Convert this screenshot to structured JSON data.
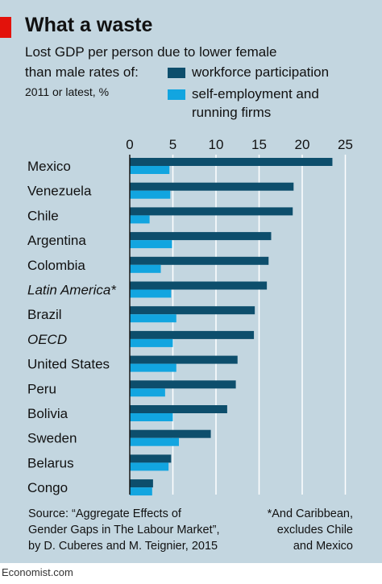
{
  "header": {
    "title": "What a waste",
    "subtitle_line1": "Lost GDP per person due to lower female",
    "subtitle_line2": "than male rates of:",
    "unit_note": "2011 or latest, %"
  },
  "legend": {
    "series1_label": "workforce participation",
    "series2_label_line1": "self-employment and",
    "series2_label_line2": "running firms"
  },
  "colors": {
    "series1": "#0d4e6c",
    "series2": "#12a5e0",
    "background": "#c3d6e0",
    "accent": "#e3120b"
  },
  "chart_data": {
    "type": "bar",
    "orientation": "horizontal",
    "xlim": [
      0,
      25
    ],
    "x_ticks": [
      "0",
      "5",
      "10",
      "15",
      "20",
      "25"
    ],
    "grid": true,
    "categories": [
      "Mexico",
      "Venezuela",
      "Chile",
      "Argentina",
      "Colombia",
      "Latin America*",
      "Brazil",
      "OECD",
      "United States",
      "Peru",
      "Bolivia",
      "Sweden",
      "Belarus",
      "Congo"
    ],
    "italic_categories": [
      "Latin America*",
      "OECD"
    ],
    "series": [
      {
        "name": "workforce participation",
        "values": [
          23.5,
          19,
          18.9,
          16.4,
          16.1,
          15.9,
          14.5,
          14.4,
          12.5,
          12.3,
          11.3,
          9.4,
          4.8,
          2.7
        ]
      },
      {
        "name": "self-employment and running firms",
        "values": [
          4.6,
          4.7,
          2.3,
          4.9,
          3.6,
          4.8,
          5.4,
          5.0,
          5.4,
          4.1,
          5.0,
          5.7,
          4.5,
          2.6
        ]
      }
    ]
  },
  "footer": {
    "source_line1": "Source: “Aggregate Effects of",
    "source_line2": "Gender Gaps in The Labour Market”,",
    "source_line3": "by D. Cuberes and M. Teignier, 2015",
    "note_line1": "*And Caribbean,",
    "note_line2": "excludes Chile",
    "note_line3": "and Mexico"
  },
  "branding": {
    "logo": "Economist.com"
  }
}
